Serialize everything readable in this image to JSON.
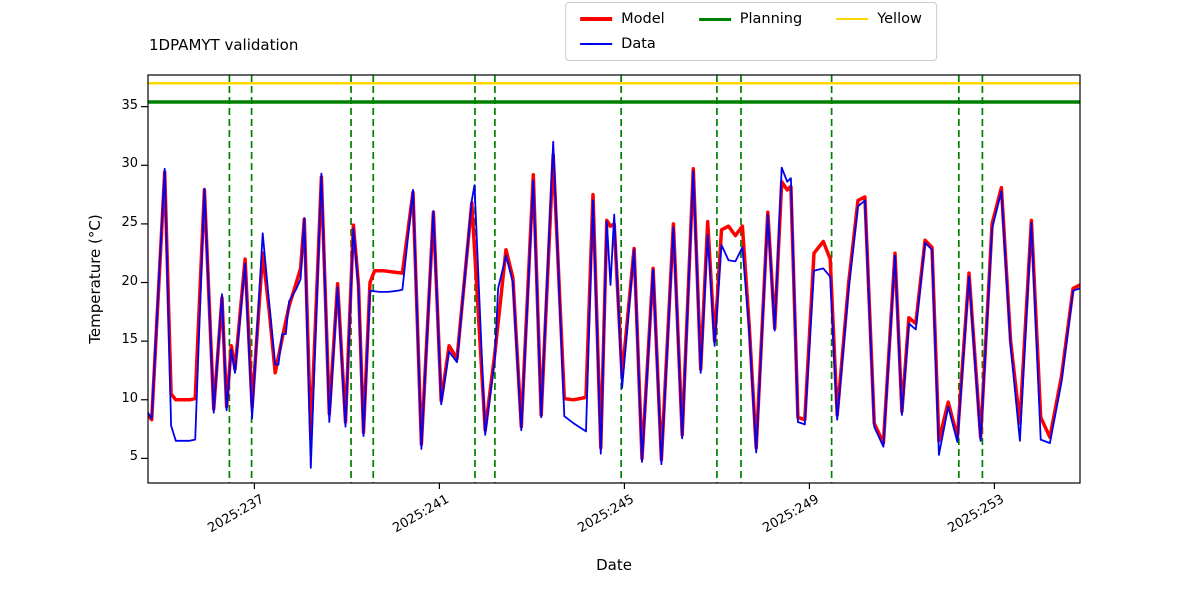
{
  "title": "1DPAMYT validation",
  "legend": {
    "items": [
      {
        "label": "Model",
        "color": "#ff0000",
        "sample_height": 4
      },
      {
        "label": "Data",
        "color": "#0000ee",
        "sample_height": 2
      },
      {
        "label": "Planning",
        "color": "#008000",
        "sample_height": 3
      },
      {
        "label": "Yellow",
        "color": "#ffd700",
        "sample_height": 2
      }
    ]
  },
  "chart_data": {
    "type": "line",
    "title": "1DPAMYT validation",
    "xlabel": "Date",
    "ylabel": "Temperature (°C)",
    "x_unit": "day-of-year 2025",
    "xlim": [
      234.7,
      254.85
    ],
    "ylim": [
      2.9,
      37.7
    ],
    "xticks": [
      237,
      241,
      245,
      249,
      253
    ],
    "xticklabels": [
      "2025:237",
      "2025:241",
      "2025:245",
      "2025:249",
      "2025:253"
    ],
    "yticks": [
      5,
      10,
      15,
      20,
      25,
      30,
      35
    ],
    "grid": false,
    "legend_position": "top-center",
    "series": [
      {
        "name": "Model",
        "color": "#ff0000",
        "width": 3.5,
        "points": [
          [
            234.7,
            8.7
          ],
          [
            234.78,
            8.3
          ],
          [
            235.06,
            29.4
          ],
          [
            235.2,
            10.5
          ],
          [
            235.3,
            10.0
          ],
          [
            235.6,
            10.0
          ],
          [
            235.72,
            10.1
          ],
          [
            235.92,
            27.9
          ],
          [
            236.12,
            9.2
          ],
          [
            236.3,
            18.7
          ],
          [
            236.4,
            9.4
          ],
          [
            236.5,
            14.6
          ],
          [
            236.58,
            12.6
          ],
          [
            236.8,
            22.0
          ],
          [
            236.95,
            9.4
          ],
          [
            237.18,
            22.5
          ],
          [
            237.32,
            17.6
          ],
          [
            237.45,
            12.3
          ],
          [
            237.6,
            15.2
          ],
          [
            237.75,
            18.0
          ],
          [
            237.9,
            19.9
          ],
          [
            238.0,
            21.2
          ],
          [
            238.08,
            25.4
          ],
          [
            238.22,
            6.8
          ],
          [
            238.45,
            29.0
          ],
          [
            238.62,
            8.8
          ],
          [
            238.8,
            19.9
          ],
          [
            238.97,
            8.1
          ],
          [
            239.14,
            24.9
          ],
          [
            239.25,
            19.8
          ],
          [
            239.36,
            7.2
          ],
          [
            239.5,
            20.0
          ],
          [
            239.6,
            21.0
          ],
          [
            239.8,
            21.0
          ],
          [
            240.0,
            20.9
          ],
          [
            240.2,
            20.8
          ],
          [
            240.43,
            27.7
          ],
          [
            240.61,
            6.2
          ],
          [
            240.87,
            26.0
          ],
          [
            241.04,
            9.9
          ],
          [
            241.21,
            14.6
          ],
          [
            241.38,
            13.5
          ],
          [
            241.7,
            26.8
          ],
          [
            241.99,
            7.4
          ],
          [
            242.2,
            14.0
          ],
          [
            242.44,
            22.8
          ],
          [
            242.59,
            20.4
          ],
          [
            242.77,
            7.7
          ],
          [
            243.03,
            29.2
          ],
          [
            243.2,
            8.7
          ],
          [
            243.46,
            30.9
          ],
          [
            243.7,
            10.1
          ],
          [
            243.9,
            10.0
          ],
          [
            244.17,
            10.2
          ],
          [
            244.32,
            27.5
          ],
          [
            244.49,
            5.9
          ],
          [
            244.62,
            25.3
          ],
          [
            244.7,
            24.8
          ],
          [
            244.78,
            25.0
          ],
          [
            244.95,
            12.0
          ],
          [
            245.21,
            22.9
          ],
          [
            245.38,
            5.0
          ],
          [
            245.62,
            21.2
          ],
          [
            245.8,
            4.9
          ],
          [
            246.06,
            25.0
          ],
          [
            246.25,
            7.0
          ],
          [
            246.49,
            29.7
          ],
          [
            246.65,
            12.6
          ],
          [
            246.8,
            25.2
          ],
          [
            246.95,
            15.0
          ],
          [
            247.1,
            24.5
          ],
          [
            247.25,
            24.8
          ],
          [
            247.4,
            24.0
          ],
          [
            247.55,
            24.8
          ],
          [
            247.7,
            16.2
          ],
          [
            247.85,
            5.9
          ],
          [
            248.1,
            26.0
          ],
          [
            248.25,
            16.1
          ],
          [
            248.4,
            28.6
          ],
          [
            248.52,
            27.9
          ],
          [
            248.6,
            28.2
          ],
          [
            248.75,
            8.5
          ],
          [
            248.9,
            8.3
          ],
          [
            249.1,
            22.5
          ],
          [
            249.3,
            23.5
          ],
          [
            249.45,
            22.0
          ],
          [
            249.6,
            8.7
          ],
          [
            249.85,
            20.0
          ],
          [
            250.05,
            27.0
          ],
          [
            250.2,
            27.3
          ],
          [
            250.4,
            8.0
          ],
          [
            250.6,
            6.3
          ],
          [
            250.85,
            22.5
          ],
          [
            251.0,
            9.0
          ],
          [
            251.15,
            17.0
          ],
          [
            251.3,
            16.5
          ],
          [
            251.5,
            23.6
          ],
          [
            251.65,
            23.0
          ],
          [
            251.8,
            6.5
          ],
          [
            252.0,
            9.8
          ],
          [
            252.2,
            6.8
          ],
          [
            252.45,
            20.8
          ],
          [
            252.7,
            6.8
          ],
          [
            252.95,
            25.0
          ],
          [
            253.15,
            28.1
          ],
          [
            253.35,
            15.0
          ],
          [
            253.55,
            8.0
          ],
          [
            253.8,
            25.3
          ],
          [
            254.0,
            8.5
          ],
          [
            254.2,
            6.8
          ],
          [
            254.45,
            12.0
          ],
          [
            254.7,
            19.5
          ],
          [
            254.85,
            19.8
          ]
        ]
      },
      {
        "name": "Data",
        "color": "#0000ee",
        "width": 1.8,
        "points": [
          [
            234.7,
            8.9
          ],
          [
            234.78,
            8.4
          ],
          [
            235.06,
            29.7
          ],
          [
            235.2,
            7.8
          ],
          [
            235.3,
            6.5
          ],
          [
            235.6,
            6.5
          ],
          [
            235.72,
            6.6
          ],
          [
            235.92,
            28.0
          ],
          [
            236.12,
            8.9
          ],
          [
            236.3,
            19.0
          ],
          [
            236.4,
            9.1
          ],
          [
            236.5,
            14.3
          ],
          [
            236.58,
            12.3
          ],
          [
            236.8,
            21.6
          ],
          [
            236.95,
            8.4
          ],
          [
            237.18,
            24.2
          ],
          [
            237.32,
            18.2
          ],
          [
            237.45,
            13.0
          ],
          [
            237.52,
            13.0
          ],
          [
            237.6,
            15.6
          ],
          [
            237.68,
            15.6
          ],
          [
            237.75,
            18.4
          ],
          [
            237.9,
            19.4
          ],
          [
            238.0,
            20.3
          ],
          [
            238.08,
            25.5
          ],
          [
            238.22,
            4.2
          ],
          [
            238.45,
            29.3
          ],
          [
            238.62,
            8.1
          ],
          [
            238.8,
            19.6
          ],
          [
            238.97,
            7.7
          ],
          [
            239.14,
            24.6
          ],
          [
            239.25,
            19.5
          ],
          [
            239.36,
            6.9
          ],
          [
            239.5,
            19.3
          ],
          [
            239.7,
            19.2
          ],
          [
            239.9,
            19.2
          ],
          [
            240.1,
            19.3
          ],
          [
            240.2,
            19.4
          ],
          [
            240.43,
            27.9
          ],
          [
            240.61,
            5.8
          ],
          [
            240.87,
            26.1
          ],
          [
            241.04,
            9.6
          ],
          [
            241.21,
            14.1
          ],
          [
            241.38,
            13.2
          ],
          [
            241.7,
            27.0
          ],
          [
            241.76,
            28.3
          ],
          [
            241.99,
            7.0
          ],
          [
            242.2,
            13.5
          ],
          [
            242.27,
            19.5
          ],
          [
            242.44,
            22.3
          ],
          [
            242.59,
            20.0
          ],
          [
            242.77,
            7.4
          ],
          [
            243.03,
            28.7
          ],
          [
            243.2,
            8.5
          ],
          [
            243.46,
            32.0
          ],
          [
            243.7,
            8.6
          ],
          [
            243.9,
            8.0
          ],
          [
            244.17,
            7.3
          ],
          [
            244.32,
            27.0
          ],
          [
            244.49,
            5.4
          ],
          [
            244.62,
            25.2
          ],
          [
            244.7,
            19.8
          ],
          [
            244.78,
            25.8
          ],
          [
            244.95,
            11.0
          ],
          [
            245.21,
            22.8
          ],
          [
            245.38,
            4.7
          ],
          [
            245.62,
            21.1
          ],
          [
            245.8,
            4.5
          ],
          [
            246.06,
            24.7
          ],
          [
            246.25,
            6.7
          ],
          [
            246.49,
            29.5
          ],
          [
            246.65,
            12.3
          ],
          [
            246.8,
            24.1
          ],
          [
            246.95,
            14.6
          ],
          [
            247.1,
            23.2
          ],
          [
            247.25,
            21.9
          ],
          [
            247.4,
            21.8
          ],
          [
            247.55,
            23.0
          ],
          [
            247.7,
            15.8
          ],
          [
            247.85,
            5.5
          ],
          [
            248.1,
            25.8
          ],
          [
            248.25,
            15.9
          ],
          [
            248.4,
            29.8
          ],
          [
            248.52,
            28.6
          ],
          [
            248.6,
            28.9
          ],
          [
            248.75,
            8.1
          ],
          [
            248.9,
            7.9
          ],
          [
            249.1,
            21.0
          ],
          [
            249.3,
            21.2
          ],
          [
            249.45,
            20.5
          ],
          [
            249.6,
            8.3
          ],
          [
            249.85,
            19.5
          ],
          [
            250.05,
            26.5
          ],
          [
            250.2,
            27.0
          ],
          [
            250.4,
            7.7
          ],
          [
            250.6,
            6.0
          ],
          [
            250.85,
            22.3
          ],
          [
            251.0,
            8.7
          ],
          [
            251.15,
            16.5
          ],
          [
            251.3,
            16.0
          ],
          [
            251.5,
            23.4
          ],
          [
            251.65,
            22.8
          ],
          [
            251.8,
            5.3
          ],
          [
            252.0,
            9.4
          ],
          [
            252.2,
            6.4
          ],
          [
            252.45,
            20.5
          ],
          [
            252.7,
            6.5
          ],
          [
            252.95,
            24.6
          ],
          [
            253.15,
            27.8
          ],
          [
            253.35,
            14.6
          ],
          [
            253.55,
            6.5
          ],
          [
            253.8,
            25.1
          ],
          [
            254.0,
            6.6
          ],
          [
            254.2,
            6.3
          ],
          [
            254.45,
            11.5
          ],
          [
            254.7,
            19.3
          ],
          [
            254.85,
            19.5
          ]
        ]
      }
    ],
    "reference_lines": {
      "horizontal": [
        {
          "name": "Planning",
          "y": 35.4,
          "color": "#008000",
          "style": "solid",
          "width": 3.5
        },
        {
          "name": "Yellow",
          "y": 37.0,
          "color": "#ffd700",
          "style": "solid",
          "width": 2.5
        }
      ],
      "vertical": {
        "color": "#008000",
        "style": "dashed",
        "x_values": [
          236.46,
          236.94,
          239.09,
          239.57,
          241.77,
          242.2,
          244.93,
          247.0,
          247.52,
          249.48,
          252.23,
          252.74
        ]
      }
    }
  }
}
